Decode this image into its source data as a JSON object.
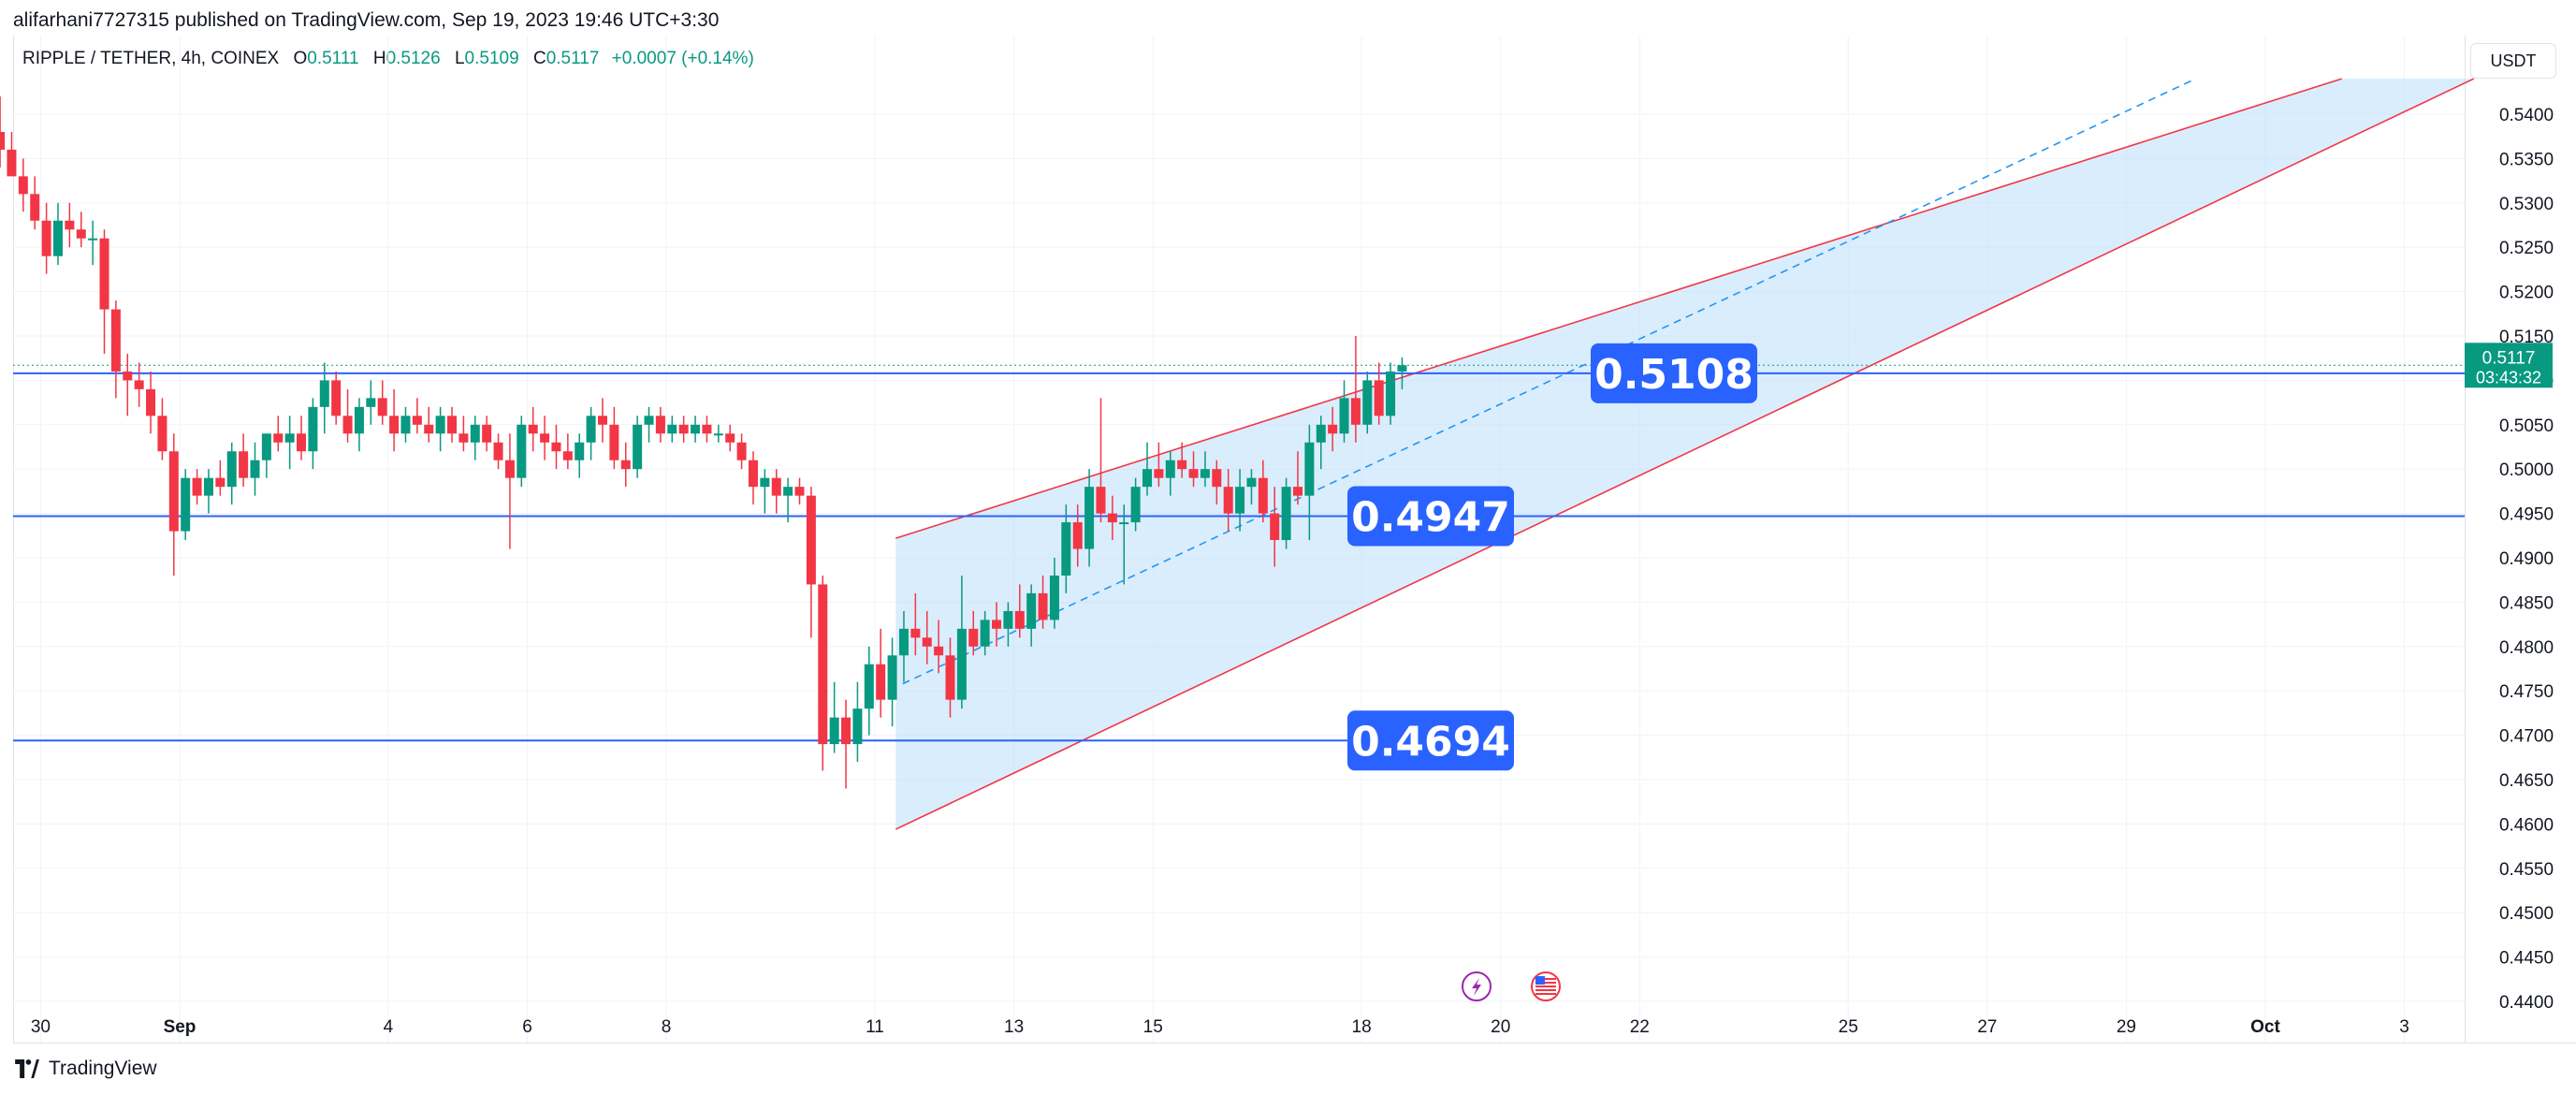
{
  "header": {
    "published": "alifarhani7727315 published on TradingView.com, Sep 19, 2023 19:46 UTC+3:30"
  },
  "symbol": {
    "name": "RIPPLE / TETHER, 4h, COINEX",
    "o_label": "O",
    "o": "0.5111",
    "h_label": "H",
    "h": "0.5126",
    "l_label": "L",
    "l": "0.5109",
    "c_label": "C",
    "c": "0.5117",
    "change": "+0.0007 (+0.14%)"
  },
  "currency_button": "USDT",
  "footer": {
    "brand": "TradingView"
  },
  "colors": {
    "up": "#089981",
    "down": "#f23645",
    "hline": "#2962ff",
    "channel_fill": "#bbdefb",
    "channel_line": "#f23645",
    "mid_line": "#2196f3",
    "label_bg": "#2962ff",
    "last_price_bg": "#089981"
  },
  "chart_data": {
    "type": "candlestick",
    "title": "RIPPLE / TETHER, 4h, COINEX",
    "ylim": [
      0.44,
      0.544
    ],
    "x_ticks": [
      "30",
      "Sep",
      "4",
      "6",
      "8",
      "11",
      "13",
      "15",
      "18",
      "20",
      "22",
      "25",
      "27",
      "29",
      "Oct",
      "3"
    ],
    "y_ticks": [
      "0.5400",
      "0.5350",
      "0.5300",
      "0.5250",
      "0.5200",
      "0.5150",
      "0.5100",
      "0.5050",
      "0.5000",
      "0.4950",
      "0.4900",
      "0.4850",
      "0.4800",
      "0.4750",
      "0.4700",
      "0.4650",
      "0.4600",
      "0.4550",
      "0.4500",
      "0.4450",
      "0.4400"
    ],
    "candles": [
      [
        0.535,
        0.541,
        0.53,
        0.538
      ],
      [
        0.538,
        0.542,
        0.534,
        0.536
      ],
      [
        0.536,
        0.538,
        0.533,
        0.533
      ],
      [
        0.533,
        0.535,
        0.529,
        0.531
      ],
      [
        0.531,
        0.533,
        0.527,
        0.528
      ],
      [
        0.528,
        0.53,
        0.522,
        0.524
      ],
      [
        0.524,
        0.53,
        0.523,
        0.528
      ],
      [
        0.528,
        0.53,
        0.525,
        0.527
      ],
      [
        0.527,
        0.529,
        0.525,
        0.526
      ],
      [
        0.526,
        0.528,
        0.523,
        0.526
      ],
      [
        0.526,
        0.527,
        0.513,
        0.518
      ],
      [
        0.518,
        0.519,
        0.508,
        0.511
      ],
      [
        0.511,
        0.513,
        0.506,
        0.51
      ],
      [
        0.51,
        0.512,
        0.507,
        0.509
      ],
      [
        0.509,
        0.511,
        0.504,
        0.506
      ],
      [
        0.506,
        0.508,
        0.501,
        0.502
      ],
      [
        0.502,
        0.504,
        0.488,
        0.493
      ],
      [
        0.493,
        0.5,
        0.492,
        0.499
      ],
      [
        0.499,
        0.5,
        0.496,
        0.497
      ],
      [
        0.497,
        0.5,
        0.495,
        0.499
      ],
      [
        0.499,
        0.501,
        0.497,
        0.498
      ],
      [
        0.498,
        0.503,
        0.496,
        0.502
      ],
      [
        0.502,
        0.504,
        0.498,
        0.499
      ],
      [
        0.499,
        0.503,
        0.497,
        0.501
      ],
      [
        0.501,
        0.504,
        0.499,
        0.504
      ],
      [
        0.504,
        0.506,
        0.502,
        0.503
      ],
      [
        0.503,
        0.506,
        0.5,
        0.504
      ],
      [
        0.504,
        0.506,
        0.501,
        0.502
      ],
      [
        0.502,
        0.508,
        0.5,
        0.507
      ],
      [
        0.507,
        0.512,
        0.504,
        0.51
      ],
      [
        0.51,
        0.511,
        0.505,
        0.506
      ],
      [
        0.506,
        0.509,
        0.503,
        0.504
      ],
      [
        0.504,
        0.508,
        0.502,
        0.507
      ],
      [
        0.507,
        0.51,
        0.505,
        0.508
      ],
      [
        0.508,
        0.51,
        0.505,
        0.506
      ],
      [
        0.506,
        0.509,
        0.502,
        0.504
      ],
      [
        0.504,
        0.507,
        0.503,
        0.506
      ],
      [
        0.506,
        0.508,
        0.504,
        0.505
      ],
      [
        0.505,
        0.507,
        0.503,
        0.504
      ],
      [
        0.504,
        0.507,
        0.502,
        0.506
      ],
      [
        0.506,
        0.507,
        0.503,
        0.504
      ],
      [
        0.504,
        0.506,
        0.502,
        0.503
      ],
      [
        0.503,
        0.506,
        0.501,
        0.505
      ],
      [
        0.505,
        0.506,
        0.502,
        0.503
      ],
      [
        0.503,
        0.504,
        0.5,
        0.501
      ],
      [
        0.501,
        0.504,
        0.491,
        0.499
      ],
      [
        0.499,
        0.506,
        0.498,
        0.505
      ],
      [
        0.505,
        0.507,
        0.502,
        0.504
      ],
      [
        0.504,
        0.506,
        0.501,
        0.503
      ],
      [
        0.503,
        0.505,
        0.5,
        0.502
      ],
      [
        0.502,
        0.504,
        0.5,
        0.501
      ],
      [
        0.501,
        0.504,
        0.499,
        0.503
      ],
      [
        0.503,
        0.507,
        0.501,
        0.506
      ],
      [
        0.506,
        0.508,
        0.503,
        0.505
      ],
      [
        0.505,
        0.507,
        0.5,
        0.501
      ],
      [
        0.501,
        0.503,
        0.498,
        0.5
      ],
      [
        0.5,
        0.506,
        0.499,
        0.505
      ],
      [
        0.505,
        0.507,
        0.503,
        0.506
      ],
      [
        0.506,
        0.507,
        0.503,
        0.504
      ],
      [
        0.504,
        0.506,
        0.503,
        0.505
      ],
      [
        0.505,
        0.506,
        0.503,
        0.504
      ],
      [
        0.504,
        0.506,
        0.503,
        0.505
      ],
      [
        0.505,
        0.506,
        0.503,
        0.504
      ],
      [
        0.504,
        0.505,
        0.503,
        0.504
      ],
      [
        0.504,
        0.505,
        0.502,
        0.503
      ],
      [
        0.503,
        0.504,
        0.5,
        0.501
      ],
      [
        0.501,
        0.502,
        0.496,
        0.498
      ],
      [
        0.498,
        0.5,
        0.495,
        0.499
      ],
      [
        0.499,
        0.5,
        0.495,
        0.497
      ],
      [
        0.497,
        0.499,
        0.494,
        0.498
      ],
      [
        0.498,
        0.499,
        0.496,
        0.497
      ],
      [
        0.497,
        0.498,
        0.481,
        0.487
      ],
      [
        0.487,
        0.488,
        0.466,
        0.469
      ],
      [
        0.469,
        0.476,
        0.468,
        0.472
      ],
      [
        0.472,
        0.474,
        0.464,
        0.469
      ],
      [
        0.469,
        0.476,
        0.467,
        0.473
      ],
      [
        0.473,
        0.48,
        0.47,
        0.478
      ],
      [
        0.478,
        0.482,
        0.472,
        0.474
      ],
      [
        0.474,
        0.481,
        0.471,
        0.479
      ],
      [
        0.479,
        0.484,
        0.476,
        0.482
      ],
      [
        0.482,
        0.486,
        0.479,
        0.481
      ],
      [
        0.481,
        0.484,
        0.478,
        0.48
      ],
      [
        0.48,
        0.483,
        0.477,
        0.479
      ],
      [
        0.479,
        0.481,
        0.472,
        0.474
      ],
      [
        0.474,
        0.488,
        0.473,
        0.482
      ],
      [
        0.482,
        0.484,
        0.479,
        0.48
      ],
      [
        0.48,
        0.484,
        0.479,
        0.483
      ],
      [
        0.483,
        0.485,
        0.48,
        0.482
      ],
      [
        0.482,
        0.485,
        0.48,
        0.484
      ],
      [
        0.484,
        0.487,
        0.481,
        0.482
      ],
      [
        0.482,
        0.487,
        0.48,
        0.486
      ],
      [
        0.486,
        0.488,
        0.482,
        0.483
      ],
      [
        0.483,
        0.49,
        0.482,
        0.488
      ],
      [
        0.488,
        0.496,
        0.486,
        0.494
      ],
      [
        0.494,
        0.496,
        0.489,
        0.491
      ],
      [
        0.491,
        0.5,
        0.489,
        0.498
      ],
      [
        0.498,
        0.508,
        0.494,
        0.495
      ],
      [
        0.495,
        0.497,
        0.492,
        0.494
      ],
      [
        0.494,
        0.496,
        0.487,
        0.494
      ],
      [
        0.494,
        0.499,
        0.493,
        0.498
      ],
      [
        0.498,
        0.503,
        0.497,
        0.5
      ],
      [
        0.5,
        0.503,
        0.498,
        0.499
      ],
      [
        0.499,
        0.502,
        0.497,
        0.501
      ],
      [
        0.501,
        0.503,
        0.499,
        0.5
      ],
      [
        0.5,
        0.502,
        0.498,
        0.499
      ],
      [
        0.499,
        0.502,
        0.498,
        0.5
      ],
      [
        0.5,
        0.501,
        0.496,
        0.498
      ],
      [
        0.498,
        0.5,
        0.493,
        0.495
      ],
      [
        0.495,
        0.5,
        0.493,
        0.498
      ],
      [
        0.498,
        0.5,
        0.496,
        0.499
      ],
      [
        0.499,
        0.501,
        0.494,
        0.495
      ],
      [
        0.495,
        0.498,
        0.489,
        0.492
      ],
      [
        0.492,
        0.499,
        0.491,
        0.498
      ],
      [
        0.498,
        0.502,
        0.496,
        0.497
      ],
      [
        0.497,
        0.505,
        0.492,
        0.503
      ],
      [
        0.503,
        0.506,
        0.5,
        0.505
      ],
      [
        0.505,
        0.507,
        0.502,
        0.504
      ],
      [
        0.504,
        0.51,
        0.503,
        0.508
      ],
      [
        0.508,
        0.515,
        0.503,
        0.505
      ],
      [
        0.505,
        0.511,
        0.504,
        0.51
      ],
      [
        0.51,
        0.512,
        0.505,
        0.506
      ],
      [
        0.506,
        0.512,
        0.505,
        0.511
      ],
      [
        0.511,
        0.5126,
        0.509,
        0.5117
      ]
    ],
    "horizontal_levels": [
      {
        "price": 0.5108,
        "label": "0.5108"
      },
      {
        "price": 0.4947,
        "label": "0.4947"
      },
      {
        "price": 0.4694,
        "label": "0.4694"
      }
    ],
    "channel": {
      "upper": [
        {
          "x": "Sep 11",
          "y": 0.4922
        },
        {
          "x": "Oct 2",
          "y": 0.544
        }
      ],
      "lower": [
        {
          "x": "Sep 11",
          "y": 0.4594
        },
        {
          "x": "Oct 3",
          "y": 0.544
        }
      ]
    },
    "last_price": {
      "value": "0.5117",
      "countdown": "03:43:32"
    },
    "grid": true
  }
}
